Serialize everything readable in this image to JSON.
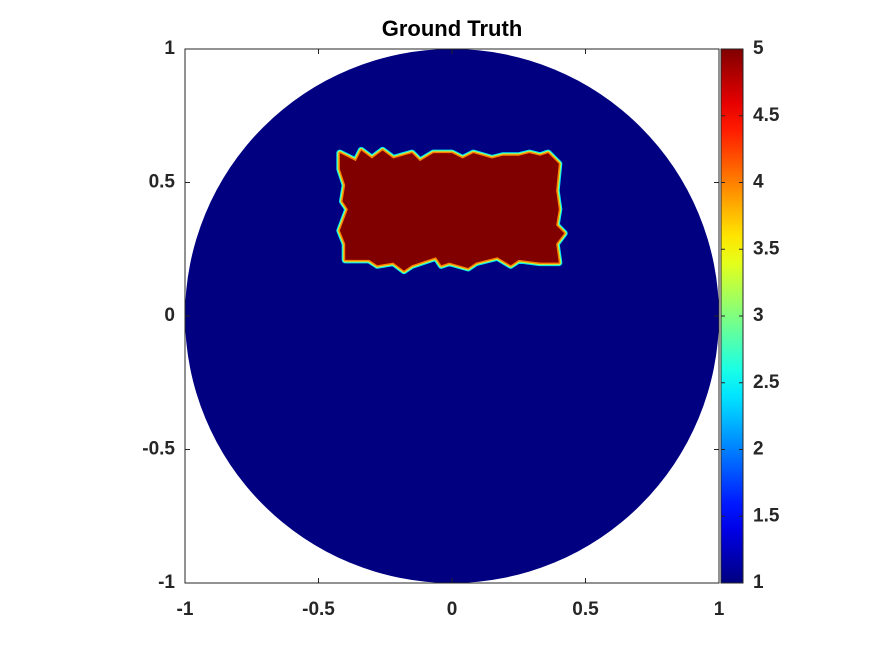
{
  "chart_data": {
    "type": "region-map",
    "title": "Ground Truth",
    "xlim": [
      -1,
      1
    ],
    "ylim": [
      -1,
      1
    ],
    "xticks": [
      -1,
      -0.5,
      0,
      0.5,
      1
    ],
    "yticks": [
      -1,
      -0.5,
      0,
      0.5,
      1
    ],
    "colormap": "jet",
    "clim": [
      1,
      5
    ],
    "cticks": [
      1,
      1.5,
      2,
      2.5,
      3,
      3.5,
      4,
      4.5,
      5
    ],
    "regions": [
      {
        "shape": "disk",
        "center": [
          0,
          0
        ],
        "radius": 1,
        "value": 1
      },
      {
        "shape": "polygon",
        "value": 5,
        "points": [
          [
            -0.42,
            0.61
          ],
          [
            -0.36,
            0.58
          ],
          [
            -0.34,
            0.62
          ],
          [
            -0.3,
            0.59
          ],
          [
            -0.26,
            0.62
          ],
          [
            -0.22,
            0.59
          ],
          [
            -0.15,
            0.61
          ],
          [
            -0.12,
            0.58
          ],
          [
            -0.07,
            0.61
          ],
          [
            0.0,
            0.61
          ],
          [
            0.04,
            0.59
          ],
          [
            0.08,
            0.61
          ],
          [
            0.15,
            0.59
          ],
          [
            0.19,
            0.6
          ],
          [
            0.25,
            0.6
          ],
          [
            0.29,
            0.61
          ],
          [
            0.33,
            0.6
          ],
          [
            0.36,
            0.61
          ],
          [
            0.4,
            0.57
          ],
          [
            0.39,
            0.47
          ],
          [
            0.4,
            0.4
          ],
          [
            0.39,
            0.34
          ],
          [
            0.42,
            0.31
          ],
          [
            0.39,
            0.27
          ],
          [
            0.4,
            0.2
          ],
          [
            0.33,
            0.2
          ],
          [
            0.25,
            0.21
          ],
          [
            0.22,
            0.19
          ],
          [
            0.17,
            0.22
          ],
          [
            0.09,
            0.2
          ],
          [
            0.06,
            0.18
          ],
          [
            -0.01,
            0.2
          ],
          [
            -0.04,
            0.19
          ],
          [
            -0.06,
            0.22
          ],
          [
            -0.15,
            0.19
          ],
          [
            -0.18,
            0.17
          ],
          [
            -0.22,
            0.2
          ],
          [
            -0.28,
            0.19
          ],
          [
            -0.31,
            0.21
          ],
          [
            -0.4,
            0.21
          ],
          [
            -0.4,
            0.27
          ],
          [
            -0.42,
            0.32
          ],
          [
            -0.39,
            0.4
          ],
          [
            -0.41,
            0.43
          ],
          [
            -0.4,
            0.49
          ],
          [
            -0.42,
            0.55
          ]
        ]
      }
    ]
  }
}
